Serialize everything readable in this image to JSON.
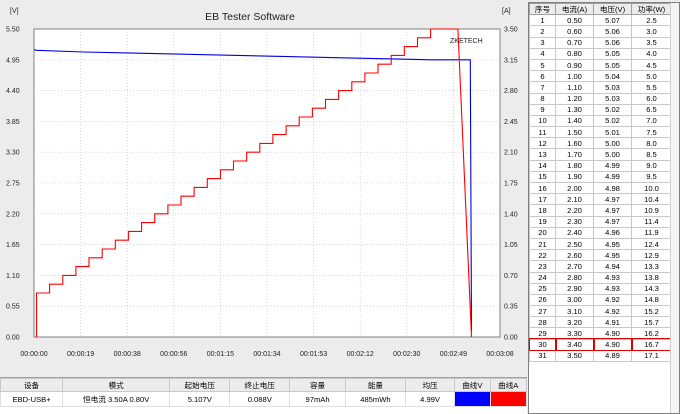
{
  "window": {
    "title": "EB Tester Software",
    "watermark": "ZKETECH"
  },
  "chart_data": {
    "type": "line",
    "title": "EB Tester Software",
    "left_axis": {
      "unit": "[V]",
      "ylim": [
        0.0,
        5.5
      ],
      "ticks": [
        "5.50",
        "4.95",
        "4.40",
        "3.85",
        "3.30",
        "2.75",
        "2.20",
        "1.65",
        "1.10",
        "0.55",
        "0.00"
      ]
    },
    "right_axis": {
      "unit": "[A]",
      "ylim": [
        0.0,
        3.5
      ],
      "ticks": [
        "3.50",
        "3.15",
        "2.80",
        "2.45",
        "2.10",
        "1.75",
        "1.40",
        "1.05",
        "0.70",
        "0.35",
        "0.00"
      ]
    },
    "x_axis": {
      "unit": "seconds",
      "xlim": [
        0,
        188
      ],
      "ticks": [
        "00:00:00",
        "00:00:19",
        "00:00:38",
        "00:00:56",
        "00:01:15",
        "00:01:34",
        "00:01:53",
        "00:02:12",
        "00:02:30",
        "00:02:49",
        "00:03:08"
      ]
    },
    "grid": true,
    "series": [
      {
        "name": "曲线V",
        "axis": "left",
        "color": "#0000e0",
        "x": [
          0,
          1,
          20,
          40,
          60,
          80,
          100,
          120,
          140,
          150,
          160,
          170,
          176,
          176.5
        ],
        "y": [
          5.13,
          5.12,
          5.09,
          5.07,
          5.05,
          5.03,
          5.01,
          4.99,
          4.97,
          4.96,
          4.95,
          4.95,
          4.95,
          0.1
        ]
      },
      {
        "name": "曲线A",
        "axis": "right",
        "color": "#ff0000",
        "step_currents": [
          0.5,
          0.6,
          0.7,
          0.8,
          0.9,
          1.0,
          1.1,
          1.2,
          1.3,
          1.4,
          1.5,
          1.6,
          1.7,
          1.8,
          1.9,
          2.0,
          2.1,
          2.2,
          2.3,
          2.4,
          2.5,
          2.6,
          2.7,
          2.8,
          2.9,
          3.0,
          3.1,
          3.2,
          3.3,
          3.4,
          3.5
        ],
        "step_duration_s": 5.3,
        "final_step_duration_s": 11,
        "start_s": 1,
        "end_s": 176.5
      }
    ]
  },
  "table": {
    "headers": [
      "序号",
      "电流(A)",
      "电压(V)",
      "功率(W)"
    ],
    "rows": [
      [
        "1",
        "0.50",
        "5.07",
        "2.5"
      ],
      [
        "2",
        "0.60",
        "5.06",
        "3.0"
      ],
      [
        "3",
        "0.70",
        "5.06",
        "3.5"
      ],
      [
        "4",
        "0.80",
        "5.05",
        "4.0"
      ],
      [
        "5",
        "0.90",
        "5.05",
        "4.5"
      ],
      [
        "6",
        "1.00",
        "5.04",
        "5.0"
      ],
      [
        "7",
        "1.10",
        "5.03",
        "5.5"
      ],
      [
        "8",
        "1.20",
        "5.03",
        "6.0"
      ],
      [
        "9",
        "1.30",
        "5.02",
        "6.5"
      ],
      [
        "10",
        "1.40",
        "5.02",
        "7.0"
      ],
      [
        "11",
        "1.50",
        "5.01",
        "7.5"
      ],
      [
        "12",
        "1.60",
        "5.00",
        "8.0"
      ],
      [
        "13",
        "1.70",
        "5.00",
        "8.5"
      ],
      [
        "14",
        "1.80",
        "4.99",
        "9.0"
      ],
      [
        "15",
        "1.90",
        "4.99",
        "9.5"
      ],
      [
        "16",
        "2.00",
        "4.98",
        "10.0"
      ],
      [
        "17",
        "2.10",
        "4.97",
        "10.4"
      ],
      [
        "18",
        "2.20",
        "4.97",
        "10.9"
      ],
      [
        "19",
        "2.30",
        "4.97",
        "11.4"
      ],
      [
        "20",
        "2.40",
        "4.96",
        "11.9"
      ],
      [
        "21",
        "2.50",
        "4.95",
        "12.4"
      ],
      [
        "22",
        "2.60",
        "4.95",
        "12.9"
      ],
      [
        "23",
        "2.70",
        "4.94",
        "13.3"
      ],
      [
        "24",
        "2.80",
        "4.93",
        "13.8"
      ],
      [
        "25",
        "2.90",
        "4.93",
        "14.3"
      ],
      [
        "26",
        "3.00",
        "4.92",
        "14.8"
      ],
      [
        "27",
        "3.10",
        "4.92",
        "15.2"
      ],
      [
        "28",
        "3.20",
        "4.91",
        "15.7"
      ],
      [
        "29",
        "3.30",
        "4.90",
        "16.2"
      ],
      [
        "30",
        "3.40",
        "4.90",
        "16.7"
      ],
      [
        "31",
        "3.50",
        "4.89",
        "17.1"
      ]
    ],
    "highlighted_row": 29
  },
  "status": {
    "headers": [
      "设备",
      "模式",
      "起始电压",
      "终止电压",
      "容量",
      "能量",
      "均压",
      "曲线V",
      "曲线A"
    ],
    "values": [
      "EBD-USB+",
      "恒电流 3.50A 0.80V",
      "5.107V",
      "0.088V",
      "97mAh",
      "485mWh",
      "4.99V",
      "",
      ""
    ],
    "swatch_v": "#0000ff",
    "swatch_a": "#ff0000"
  }
}
